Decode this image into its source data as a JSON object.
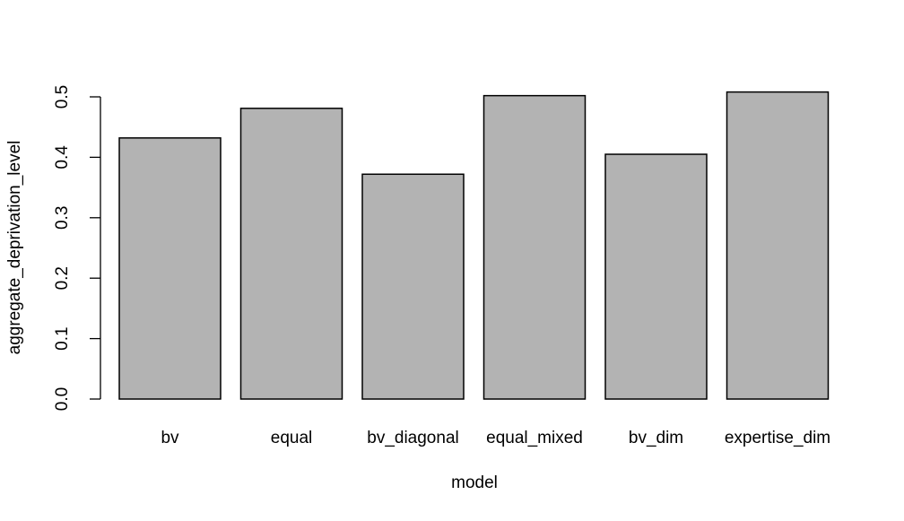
{
  "chart_data": {
    "type": "bar",
    "title": "",
    "xlabel": "model",
    "ylabel": "aggregate_deprivation_level",
    "categories": [
      "bv",
      "equal",
      "bv_diagonal",
      "equal_mixed",
      "bv_dim",
      "expertise_dim"
    ],
    "values": [
      0.432,
      0.481,
      0.372,
      0.502,
      0.405,
      0.508
    ],
    "ylim": [
      0,
      0.5
    ],
    "yticks": [
      0.0,
      0.1,
      0.2,
      0.3,
      0.4,
      0.5
    ],
    "ytick_labels": [
      "0.0",
      "0.1",
      "0.2",
      "0.3",
      "0.4",
      "0.5"
    ],
    "grid": false,
    "legend": "none",
    "bar_color": "#b3b3b3",
    "bar_edge_color": "#000000"
  }
}
